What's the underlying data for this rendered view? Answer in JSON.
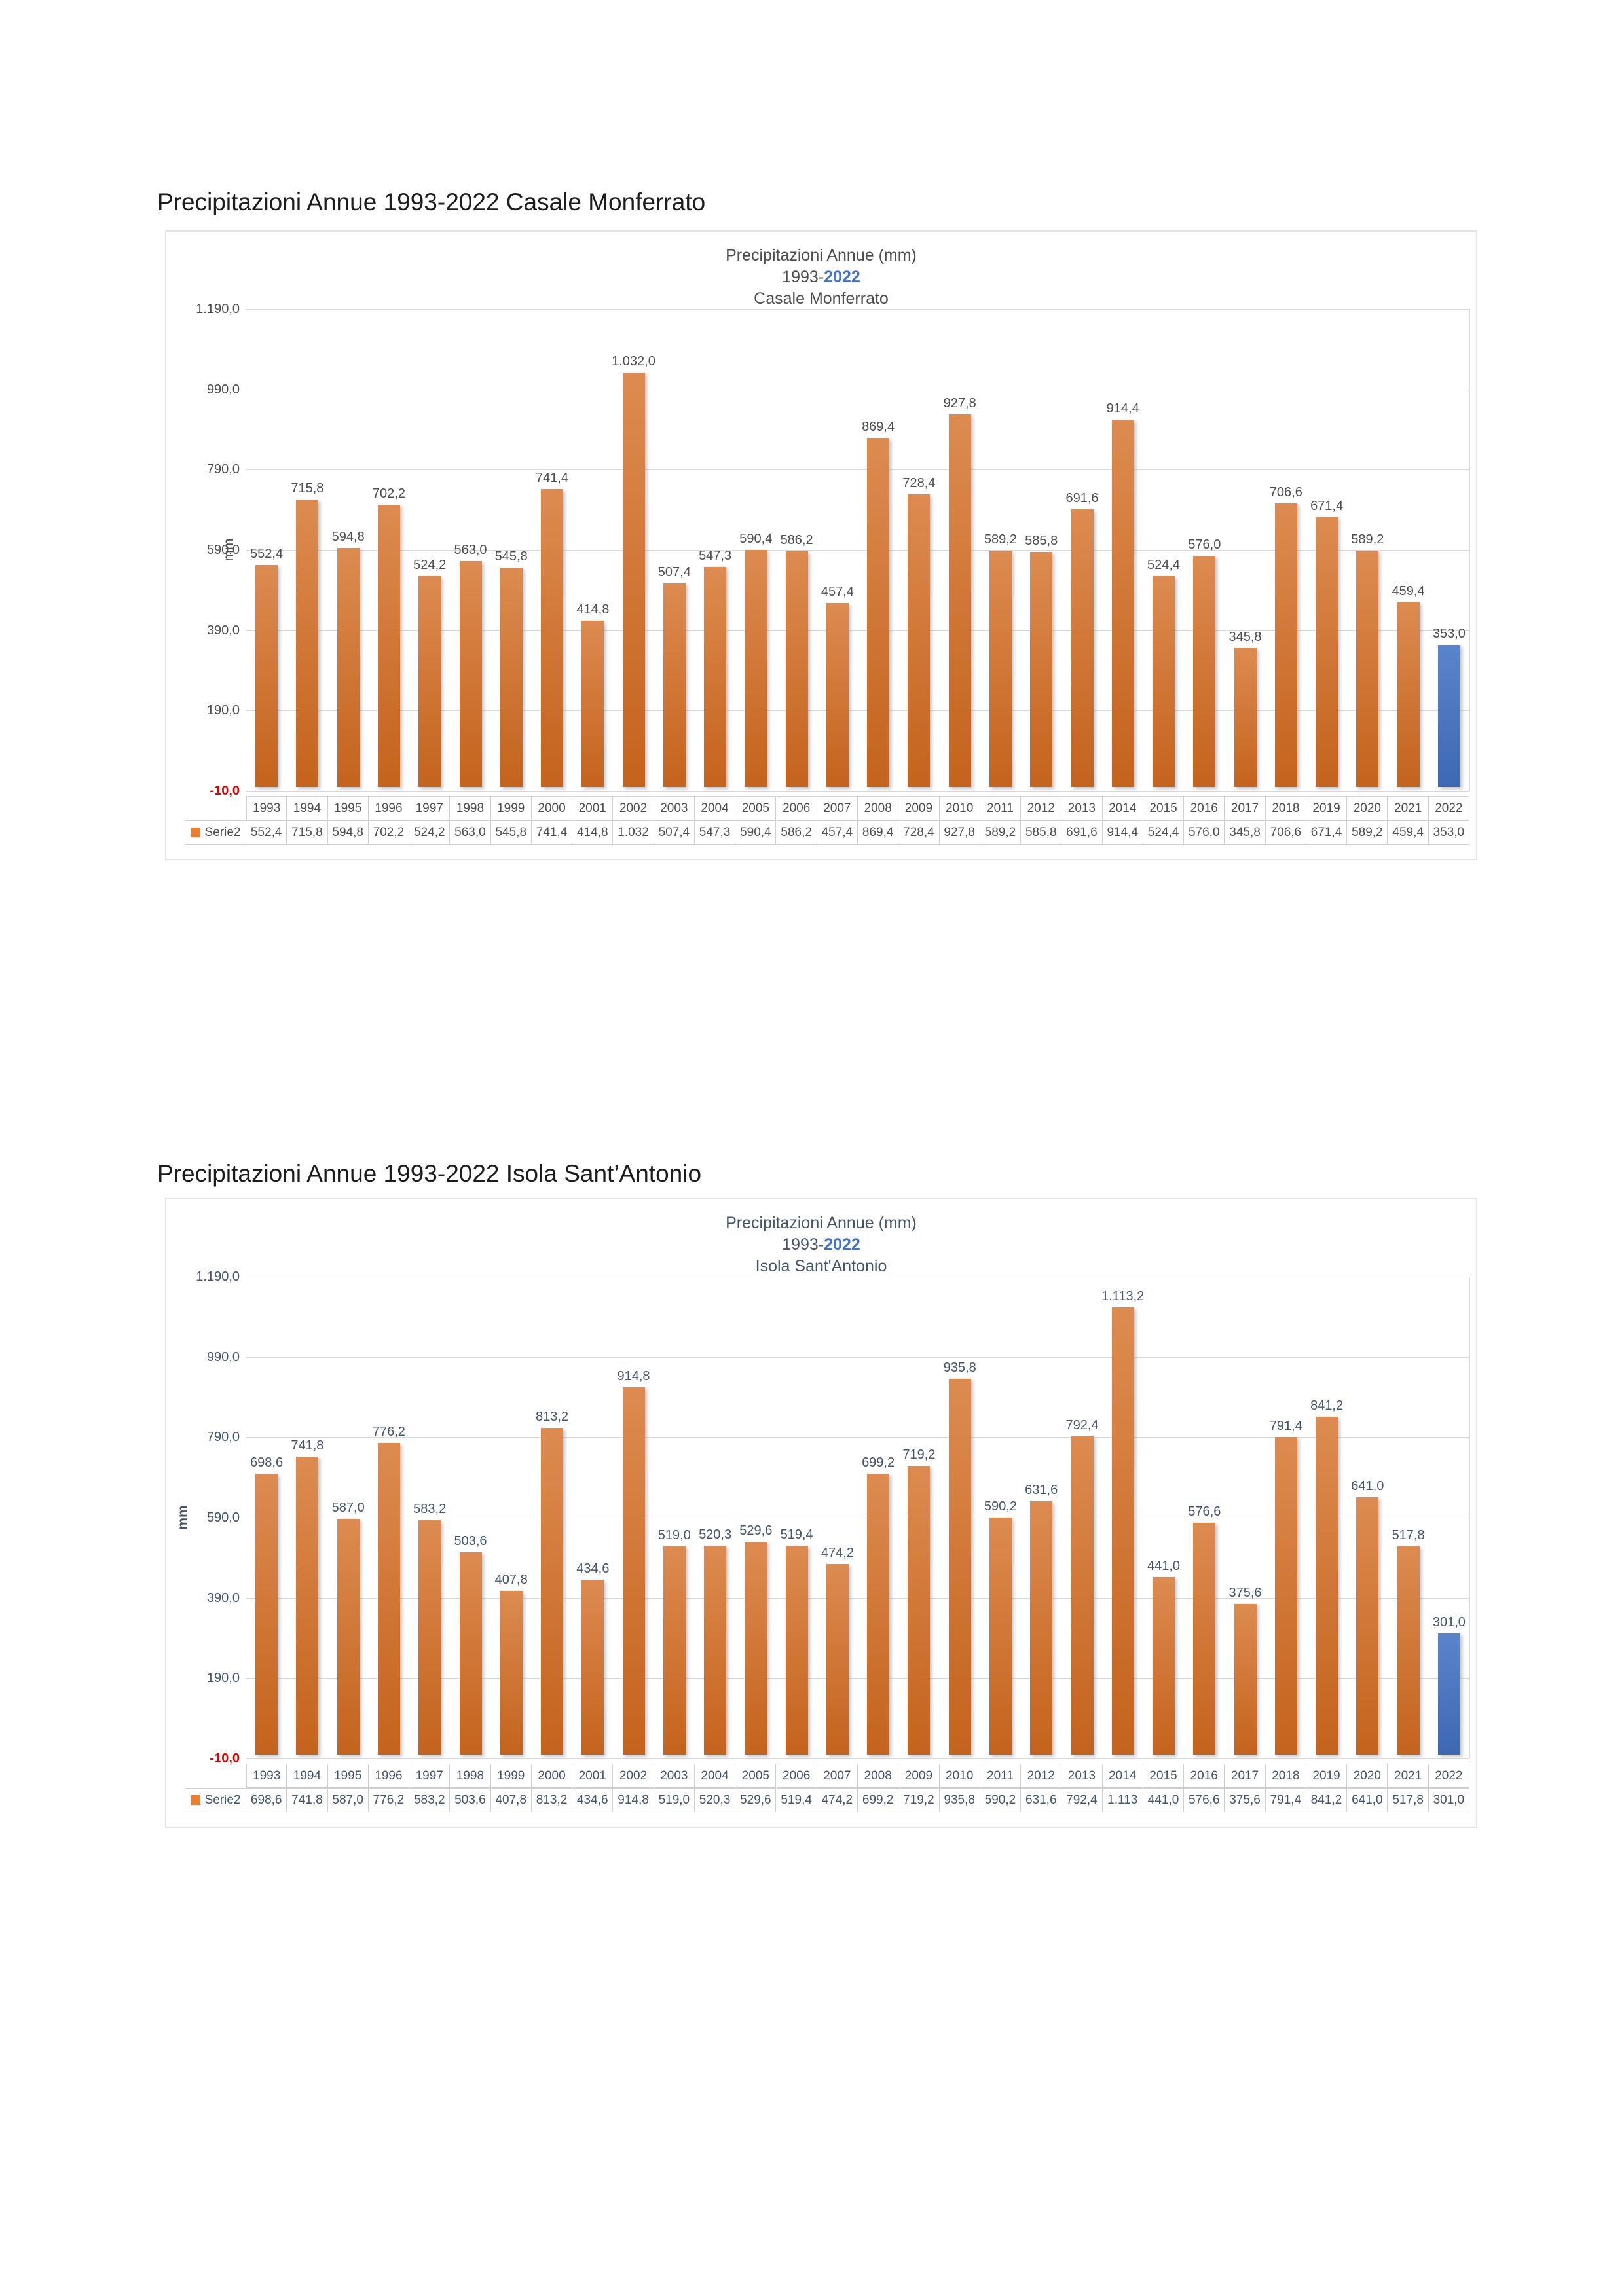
{
  "headings": [
    "Precipitazioni Annue 1993-2022 Casale Monferrato",
    "Precipitazioni Annue 1993-2022 Isola Sant’Antonio"
  ],
  "chart_data": [
    {
      "type": "bar",
      "title": {
        "line1": "Precipitazioni Annue (mm)",
        "line2_prefix": "1993-",
        "line2_year": "2022",
        "line3": "Casale Monferrato"
      },
      "ylabel": "mm",
      "legend": "Serie2",
      "ylim": [
        -10,
        1190
      ],
      "grid": true,
      "legend_position": "bottom-table",
      "yticks": [
        {
          "label": "1.190,0",
          "value": 1190
        },
        {
          "label": "990,0",
          "value": 990
        },
        {
          "label": "790,0",
          "value": 790
        },
        {
          "label": "590,0",
          "value": 590
        },
        {
          "label": "390,0",
          "value": 390
        },
        {
          "label": "190,0",
          "value": 190
        },
        {
          "label": "-10,0",
          "value": -10
        }
      ],
      "categories": [
        "1993",
        "1994",
        "1995",
        "1996",
        "1997",
        "1998",
        "1999",
        "2000",
        "2001",
        "2002",
        "2003",
        "2004",
        "2005",
        "2006",
        "2007",
        "2008",
        "2009",
        "2010",
        "2011",
        "2012",
        "2013",
        "2014",
        "2015",
        "2016",
        "2017",
        "2018",
        "2019",
        "2020",
        "2021",
        "2022"
      ],
      "values": [
        552.4,
        715.8,
        594.8,
        702.2,
        524.2,
        563.0,
        545.8,
        741.4,
        414.8,
        1032.0,
        507.4,
        547.3,
        590.4,
        586.2,
        457.4,
        869.4,
        728.4,
        927.8,
        589.2,
        585.8,
        691.6,
        914.4,
        524.4,
        576.0,
        345.8,
        706.6,
        671.4,
        589.2,
        459.4,
        353.0
      ],
      "labels": [
        "552,4",
        "715,8",
        "594,8",
        "702,2",
        "524,2",
        "563,0",
        "545,8",
        "741,4",
        "414,8",
        "1.032,0",
        "507,4",
        "547,3",
        "590,4",
        "586,2",
        "457,4",
        "869,4",
        "728,4",
        "927,8",
        "589,2",
        "585,8",
        "691,6",
        "914,4",
        "524,4",
        "576,0",
        "345,8",
        "706,6",
        "671,4",
        "589,2",
        "459,4",
        "353,0"
      ],
      "table_values": [
        "552,4",
        "715,8",
        "594,8",
        "702,2",
        "524,2",
        "563,0",
        "545,8",
        "741,4",
        "414,8",
        "1.032",
        "507,4",
        "547,3",
        "590,4",
        "586,2",
        "457,4",
        "869,4",
        "728,4",
        "927,8",
        "589,2",
        "585,8",
        "691,6",
        "914,4",
        "524,4",
        "576,0",
        "345,8",
        "706,6",
        "671,4",
        "589,2",
        "459,4",
        "353,0"
      ],
      "colors": {
        "text": "#4d4d4d",
        "accent": "#4472C4",
        "bar_gradient": [
          "#dd8b51",
          "#c4631d"
        ],
        "last_bar_gradient": [
          "#5b84cb",
          "#3f68b2"
        ],
        "swatch": "#ED7D31",
        "negative_tick": "#e00000",
        "grid": "#d9d9d9"
      }
    },
    {
      "type": "bar",
      "title": {
        "line1": "Precipitazioni Annue (mm)",
        "line2_prefix": "1993-",
        "line2_year": "2022",
        "line3": "Isola Sant'Antonio"
      },
      "ylabel": "mm",
      "legend": "Serie2",
      "ylim": [
        -10,
        1190
      ],
      "grid": true,
      "legend_position": "bottom-table",
      "yticks": [
        {
          "label": "1.190,0",
          "value": 1190
        },
        {
          "label": "990,0",
          "value": 990
        },
        {
          "label": "790,0",
          "value": 790
        },
        {
          "label": "590,0",
          "value": 590
        },
        {
          "label": "390,0",
          "value": 390
        },
        {
          "label": "190,0",
          "value": 190
        },
        {
          "label": "-10,0",
          "value": -10
        }
      ],
      "categories": [
        "1993",
        "1994",
        "1995",
        "1996",
        "1997",
        "1998",
        "1999",
        "2000",
        "2001",
        "2002",
        "2003",
        "2004",
        "2005",
        "2006",
        "2007",
        "2008",
        "2009",
        "2010",
        "2011",
        "2012",
        "2013",
        "2014",
        "2015",
        "2016",
        "2017",
        "2018",
        "2019",
        "2020",
        "2021",
        "2022"
      ],
      "values": [
        698.6,
        741.8,
        587.0,
        776.2,
        583.2,
        503.6,
        407.8,
        813.2,
        434.6,
        914.8,
        519.0,
        520.3,
        529.6,
        519.4,
        474.2,
        699.2,
        719.2,
        935.8,
        590.2,
        631.6,
        792.4,
        1113.2,
        441.0,
        576.6,
        375.6,
        791.4,
        841.2,
        641.0,
        517.8,
        301.0
      ],
      "labels": [
        "698,6",
        "741,8",
        "587,0",
        "776,2",
        "583,2",
        "503,6",
        "407,8",
        "813,2",
        "434,6",
        "914,8",
        "519,0",
        "520,3",
        "529,6",
        "519,4",
        "474,2",
        "699,2",
        "719,2",
        "935,8",
        "590,2",
        "631,6",
        "792,4",
        "1.113,2",
        "441,0",
        "576,6",
        "375,6",
        "791,4",
        "841,2",
        "641,0",
        "517,8",
        "301,0"
      ],
      "table_values": [
        "698,6",
        "741,8",
        "587,0",
        "776,2",
        "583,2",
        "503,6",
        "407,8",
        "813,2",
        "434,6",
        "914,8",
        "519,0",
        "520,3",
        "529,6",
        "519,4",
        "474,2",
        "699,2",
        "719,2",
        "935,8",
        "590,2",
        "631,6",
        "792,4",
        "1.113",
        "441,0",
        "576,6",
        "375,6",
        "791,4",
        "841,2",
        "641,0",
        "517,8",
        "301,0"
      ],
      "colors": {
        "text": "#44546A",
        "accent": "#4472C4",
        "bar_gradient": [
          "#dd8b51",
          "#c4631d"
        ],
        "last_bar_gradient": [
          "#5b84cb",
          "#3f68b2"
        ],
        "swatch": "#ED7D31",
        "negative_tick": "#e00000",
        "grid": "#d9d9d9"
      }
    }
  ]
}
